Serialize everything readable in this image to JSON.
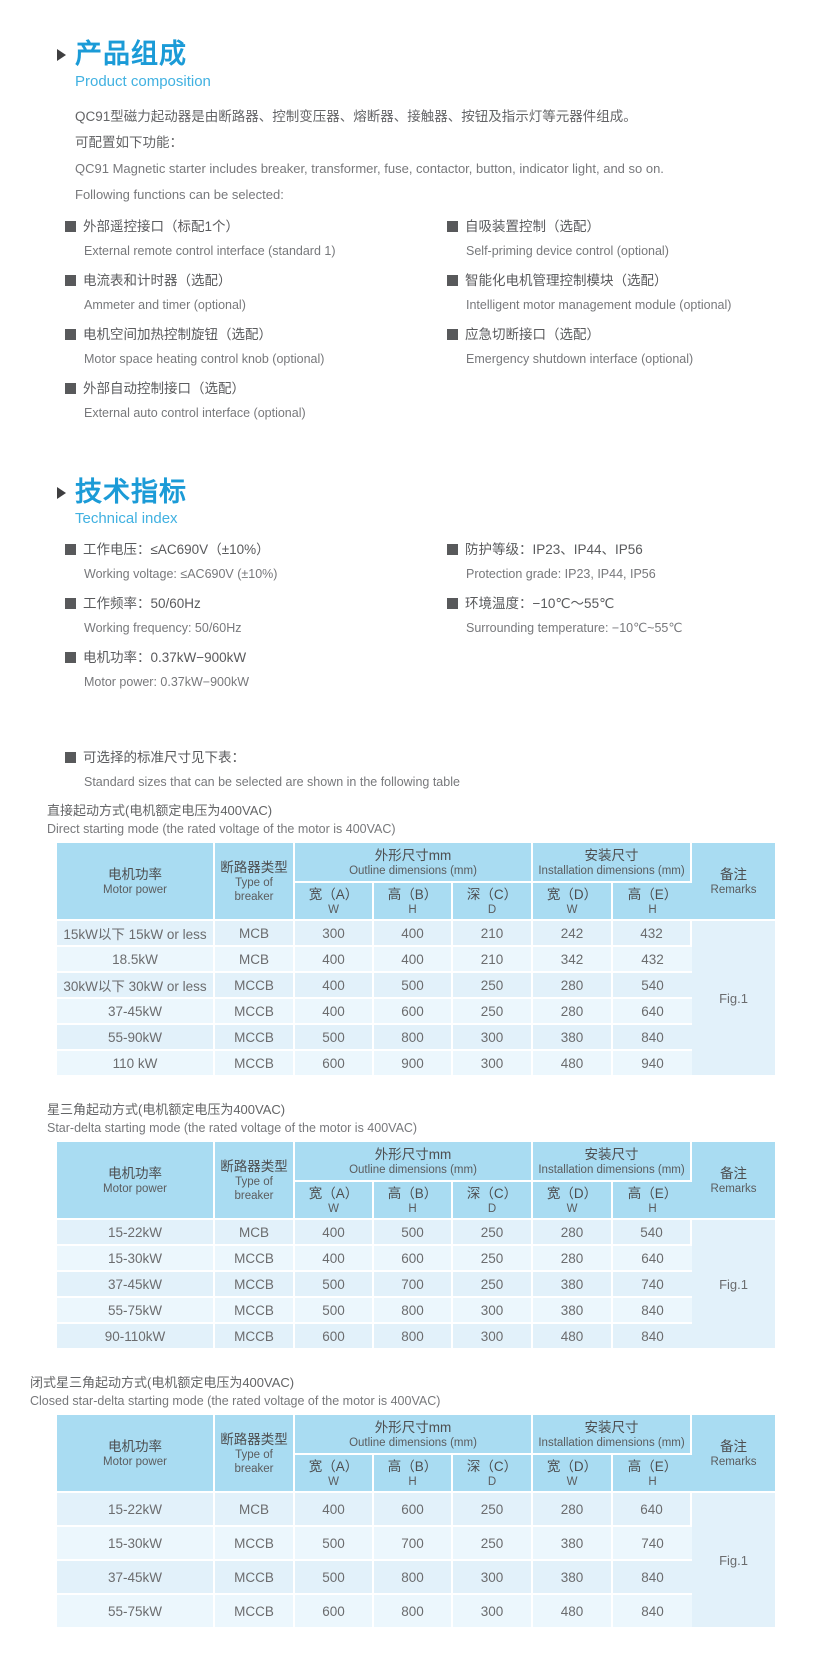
{
  "colors": {
    "accent_blue": "#1b9bd7",
    "subtitle_blue": "#41b1e1",
    "table_header_bg": "#a9dcf2",
    "row_odd_bg": "#e2f1fa",
    "row_even_bg": "#ecf7fd",
    "text_gray": "#595a5c"
  },
  "product_section": {
    "title_zh": "产品组成",
    "title_en": "Product composition",
    "paragraphs": {
      "p1_zh": "QC91型磁力起动器是由断路器、控制变压器、熔断器、接触器、按钮及指示灯等元器件组成。",
      "p2_zh": "可配置如下功能：",
      "p3_en": "QC91 Magnetic starter includes breaker, transformer, fuse, contactor, button, indicator light, and so on.",
      "p4_en": "Following functions can be selected:"
    },
    "features_left": [
      {
        "zh": "外部遥控接口（标配1个）",
        "en": "External remote control interface (standard 1)"
      },
      {
        "zh": "电流表和计时器（选配）",
        "en": "Ammeter and timer (optional)"
      },
      {
        "zh": "电机空间加热控制旋钮（选配）",
        "en": "Motor space heating control knob (optional)"
      },
      {
        "zh": "外部自动控制接口（选配）",
        "en": "External auto control interface (optional)"
      }
    ],
    "features_right": [
      {
        "zh": "自吸装置控制（选配）",
        "en": "Self-priming device control (optional)"
      },
      {
        "zh": "智能化电机管理控制模块（选配）",
        "en": "Intelligent motor management module (optional)"
      },
      {
        "zh": "应急切断接口（选配）",
        "en": "Emergency shutdown interface (optional)"
      }
    ]
  },
  "technical_section": {
    "title_zh": "技术指标",
    "title_en": "Technical index",
    "specs_left": [
      {
        "zh": "工作电压：≤AC690V（±10%）",
        "en": "Working voltage: ≤AC690V (±10%)"
      },
      {
        "zh": "工作频率：50/60Hz",
        "en": "Working frequency: 50/60Hz"
      },
      {
        "zh": "电机功率：0.37kW−900kW",
        "en": "Motor power: 0.37kW−900kW"
      }
    ],
    "specs_right": [
      {
        "zh": "防护等级：IP23、IP44、IP56",
        "en": "Protection grade: IP23, IP44, IP56"
      },
      {
        "zh": "环境温度：−10℃～55℃",
        "en": "Surrounding temperature: −10℃~55℃"
      }
    ]
  },
  "size_note": {
    "zh": "可选择的标准尺寸见下表：",
    "en": "Standard sizes that can be selected are shown in the following table"
  },
  "table_header": {
    "motor_power": {
      "zh": "电机功率",
      "en": "Motor power"
    },
    "breaker": {
      "zh": "断路器类型",
      "en": "Type of breaker"
    },
    "outline": {
      "zh": "外形尺寸mm",
      "en": "Outline dimensions (mm)"
    },
    "install": {
      "zh": "安装尺寸",
      "en": "Installation dimensions (mm)"
    },
    "remarks": {
      "zh": "备注",
      "en": "Remarks"
    },
    "sub_cols": [
      {
        "zh": "宽（A）",
        "letter": "W"
      },
      {
        "zh": "高（B）",
        "letter": "H"
      },
      {
        "zh": "深（C）",
        "letter": "D"
      },
      {
        "zh": "宽（D）",
        "letter": "W"
      },
      {
        "zh": "高（E）",
        "letter": "H"
      }
    ]
  },
  "tables": [
    {
      "caption_zh": "直接起动方式(电机额定电压为400VAC)",
      "caption_en": "Direct starting mode (the rated voltage of the motor is 400VAC)",
      "rows": [
        [
          "15kW以下 15kW or less",
          "MCB",
          "300",
          "400",
          "210",
          "242",
          "432"
        ],
        [
          "18.5kW",
          "MCB",
          "400",
          "400",
          "210",
          "342",
          "432"
        ],
        [
          "30kW以下 30kW or less",
          "MCCB",
          "400",
          "500",
          "250",
          "280",
          "540"
        ],
        [
          "37-45kW",
          "MCCB",
          "400",
          "600",
          "250",
          "280",
          "640"
        ],
        [
          "55-90kW",
          "MCCB",
          "500",
          "800",
          "300",
          "380",
          "840"
        ],
        [
          "110 kW",
          "MCCB",
          "600",
          "900",
          "300",
          "480",
          "940"
        ]
      ],
      "remark": "Fig.1"
    },
    {
      "caption_zh": "星三角起动方式(电机额定电压为400VAC)",
      "caption_en": "Star-delta starting mode (the rated voltage of the motor is 400VAC)",
      "rows": [
        [
          "15-22kW",
          "MCB",
          "400",
          "500",
          "250",
          "280",
          "540"
        ],
        [
          "15-30kW",
          "MCCB",
          "400",
          "600",
          "250",
          "280",
          "640"
        ],
        [
          "37-45kW",
          "MCCB",
          "500",
          "700",
          "250",
          "380",
          "740"
        ],
        [
          "55-75kW",
          "MCCB",
          "500",
          "800",
          "300",
          "380",
          "840"
        ],
        [
          "90-110kW",
          "MCCB",
          "600",
          "800",
          "300",
          "480",
          "840"
        ]
      ],
      "remark": "Fig.1"
    },
    {
      "caption_zh": "闭式星三角起动方式(电机额定电压为400VAC)",
      "caption_en": "Closed star-delta starting mode (the rated voltage of the motor is 400VAC)",
      "rows": [
        [
          "15-22kW",
          "MCB",
          "400",
          "600",
          "250",
          "280",
          "640"
        ],
        [
          "15-30kW",
          "MCCB",
          "500",
          "700",
          "250",
          "380",
          "740"
        ],
        [
          "37-45kW",
          "MCCB",
          "500",
          "800",
          "300",
          "380",
          "840"
        ],
        [
          "55-75kW",
          "MCCB",
          "600",
          "800",
          "300",
          "480",
          "840"
        ]
      ],
      "remark": "Fig.1"
    }
  ]
}
